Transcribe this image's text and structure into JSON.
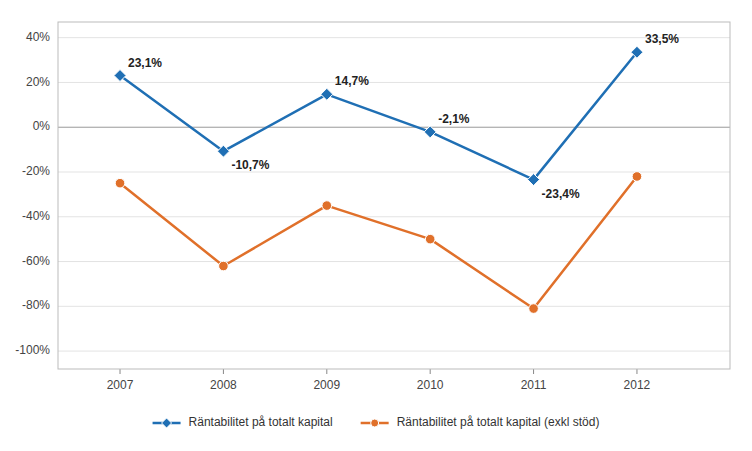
{
  "chart_data": {
    "type": "line",
    "x": [
      2007,
      2008,
      2009,
      2010,
      2011,
      2012
    ],
    "xlim": [
      2006.4,
      2012.9
    ],
    "xticks": [
      2007,
      2008,
      2009,
      2010,
      2011,
      2012
    ],
    "ylim": [
      -108,
      47
    ],
    "yticks": [
      {
        "value": -100,
        "label": "-100%"
      },
      {
        "value": -80,
        "label": "-80%"
      },
      {
        "value": -60,
        "label": "-60%"
      },
      {
        "value": -40,
        "label": "-40%"
      },
      {
        "value": -20,
        "label": "-20%"
      },
      {
        "value": 0,
        "label": "0%"
      },
      {
        "value": 20,
        "label": "20%"
      },
      {
        "value": 40,
        "label": "40%"
      }
    ],
    "grid": true,
    "legend": "bottom",
    "series": [
      {
        "name": "Räntabilitet på totalt kapital",
        "marker": "diamond",
        "values": [
          23.1,
          -10.7,
          14.7,
          -2.1,
          -23.4,
          33.5
        ],
        "data_labels": true,
        "value_labels": [
          "23,1%",
          "-10,7%",
          "14,7%",
          "-2,1%",
          "-23,4%",
          "33,5%"
        ]
      },
      {
        "name": "Räntabilitet på totalt kapital (exkl stöd)",
        "marker": "circle",
        "values": [
          -25.0,
          -62.0,
          -35.0,
          -50.0,
          -81.0,
          -22.0
        ]
      }
    ]
  }
}
